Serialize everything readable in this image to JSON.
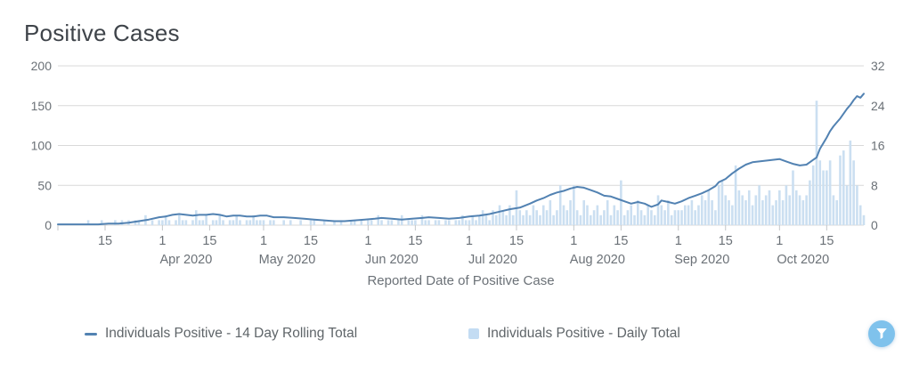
{
  "title": "Positive Cases",
  "colors": {
    "line": "#5282b2",
    "bar": "#cbdff1",
    "legend_square": "#c3dcf3",
    "grid": "#d9d9d9",
    "tick": "#c4c7ca",
    "axis_text": "#6b7177",
    "filter_button": "#7fc2ec"
  },
  "legend": {
    "items": [
      {
        "marker": "line",
        "label": "Individuals Positive - 14 Day Rolling Total"
      },
      {
        "marker": "square",
        "label": "Individuals Positive - Daily Total"
      }
    ]
  },
  "controls": {
    "filter_button_icon": "funnel-icon"
  },
  "chart_data": {
    "type": "line+bar",
    "title": "Positive Cases",
    "xlabel": "Reported Date of Positive Case",
    "x_start_date": "2020-03-01",
    "x_end_date": "2020-10-26",
    "grid": "horizontal-only",
    "legend_position": "bottom",
    "left_axis": {
      "range": [
        0,
        200
      ],
      "ticks": [
        0,
        50,
        100,
        150,
        200
      ]
    },
    "right_axis": {
      "range": [
        0,
        32
      ],
      "ticks": [
        0,
        8,
        16,
        24,
        32
      ]
    },
    "x_ticks": [
      {
        "date": "2020-03-01",
        "label": ""
      },
      {
        "date": "2020-03-15",
        "label": "15"
      },
      {
        "date": "2020-04-01",
        "label": "1"
      },
      {
        "date": "2020-04-15",
        "label": "15"
      },
      {
        "date": "2020-05-01",
        "label": "1"
      },
      {
        "date": "2020-05-15",
        "label": "15"
      },
      {
        "date": "2020-06-01",
        "label": "1"
      },
      {
        "date": "2020-06-15",
        "label": "15"
      },
      {
        "date": "2020-07-01",
        "label": "1"
      },
      {
        "date": "2020-07-15",
        "label": "15"
      },
      {
        "date": "2020-08-01",
        "label": "1"
      },
      {
        "date": "2020-08-15",
        "label": "15"
      },
      {
        "date": "2020-09-01",
        "label": "1"
      },
      {
        "date": "2020-09-15",
        "label": "15"
      },
      {
        "date": "2020-10-01",
        "label": "1"
      },
      {
        "date": "2020-10-15",
        "label": "15"
      }
    ],
    "month_labels": [
      {
        "date": "2020-04-08",
        "label": "Apr 2020"
      },
      {
        "date": "2020-05-08",
        "label": "May 2020"
      },
      {
        "date": "2020-06-08",
        "label": "Jun 2020"
      },
      {
        "date": "2020-07-08",
        "label": "Jul 2020"
      },
      {
        "date": "2020-08-08",
        "label": "Aug 2020"
      },
      {
        "date": "2020-09-08",
        "label": "Sep 2020"
      },
      {
        "date": "2020-10-08",
        "label": "Oct 2020"
      }
    ],
    "series": [
      {
        "name": "Individuals Positive - 14 Day Rolling Total",
        "type": "line",
        "axis": "left",
        "color": "#5282b2",
        "points": [
          [
            "2020-03-01",
            1
          ],
          [
            "2020-03-05",
            1
          ],
          [
            "2020-03-09",
            1
          ],
          [
            "2020-03-13",
            1
          ],
          [
            "2020-03-16",
            2
          ],
          [
            "2020-03-19",
            2
          ],
          [
            "2020-03-22",
            3
          ],
          [
            "2020-03-25",
            5
          ],
          [
            "2020-03-28",
            7
          ],
          [
            "2020-03-31",
            10
          ],
          [
            "2020-04-02",
            11
          ],
          [
            "2020-04-04",
            13
          ],
          [
            "2020-04-06",
            14
          ],
          [
            "2020-04-08",
            13
          ],
          [
            "2020-04-10",
            12
          ],
          [
            "2020-04-12",
            13
          ],
          [
            "2020-04-14",
            13
          ],
          [
            "2020-04-16",
            14
          ],
          [
            "2020-04-18",
            13
          ],
          [
            "2020-04-20",
            11
          ],
          [
            "2020-04-22",
            12
          ],
          [
            "2020-04-24",
            12
          ],
          [
            "2020-04-26",
            11
          ],
          [
            "2020-04-28",
            11
          ],
          [
            "2020-04-30",
            12
          ],
          [
            "2020-05-02",
            12
          ],
          [
            "2020-05-04",
            10
          ],
          [
            "2020-05-07",
            10
          ],
          [
            "2020-05-10",
            9
          ],
          [
            "2020-05-13",
            8
          ],
          [
            "2020-05-16",
            7
          ],
          [
            "2020-05-19",
            6
          ],
          [
            "2020-05-22",
            5
          ],
          [
            "2020-05-25",
            5
          ],
          [
            "2020-05-28",
            6
          ],
          [
            "2020-05-31",
            7
          ],
          [
            "2020-06-03",
            8
          ],
          [
            "2020-06-05",
            9
          ],
          [
            "2020-06-08",
            8
          ],
          [
            "2020-06-11",
            7
          ],
          [
            "2020-06-14",
            8
          ],
          [
            "2020-06-17",
            9
          ],
          [
            "2020-06-19",
            10
          ],
          [
            "2020-06-22",
            9
          ],
          [
            "2020-06-25",
            8
          ],
          [
            "2020-06-28",
            9
          ],
          [
            "2020-07-01",
            11
          ],
          [
            "2020-07-04",
            12
          ],
          [
            "2020-07-07",
            14
          ],
          [
            "2020-07-10",
            17
          ],
          [
            "2020-07-13",
            20
          ],
          [
            "2020-07-16",
            22
          ],
          [
            "2020-07-19",
            27
          ],
          [
            "2020-07-21",
            31
          ],
          [
            "2020-07-23",
            34
          ],
          [
            "2020-07-25",
            38
          ],
          [
            "2020-07-27",
            41
          ],
          [
            "2020-07-29",
            43
          ],
          [
            "2020-07-31",
            46
          ],
          [
            "2020-08-02",
            48
          ],
          [
            "2020-08-04",
            47
          ],
          [
            "2020-08-06",
            44
          ],
          [
            "2020-08-08",
            41
          ],
          [
            "2020-08-10",
            37
          ],
          [
            "2020-08-12",
            36
          ],
          [
            "2020-08-14",
            33
          ],
          [
            "2020-08-16",
            30
          ],
          [
            "2020-08-18",
            27
          ],
          [
            "2020-08-20",
            29
          ],
          [
            "2020-08-22",
            27
          ],
          [
            "2020-08-24",
            23
          ],
          [
            "2020-08-26",
            26
          ],
          [
            "2020-08-27",
            31
          ],
          [
            "2020-08-29",
            29
          ],
          [
            "2020-08-31",
            27
          ],
          [
            "2020-09-02",
            30
          ],
          [
            "2020-09-04",
            34
          ],
          [
            "2020-09-06",
            37
          ],
          [
            "2020-09-08",
            40
          ],
          [
            "2020-09-10",
            44
          ],
          [
            "2020-09-12",
            49
          ],
          [
            "2020-09-13",
            54
          ],
          [
            "2020-09-15",
            58
          ],
          [
            "2020-09-17",
            65
          ],
          [
            "2020-09-19",
            71
          ],
          [
            "2020-09-21",
            76
          ],
          [
            "2020-09-23",
            79
          ],
          [
            "2020-09-25",
            80
          ],
          [
            "2020-09-27",
            81
          ],
          [
            "2020-09-29",
            82
          ],
          [
            "2020-10-01",
            83
          ],
          [
            "2020-10-03",
            80
          ],
          [
            "2020-10-05",
            77
          ],
          [
            "2020-10-07",
            75
          ],
          [
            "2020-10-09",
            76
          ],
          [
            "2020-10-10",
            79
          ],
          [
            "2020-10-11",
            82
          ],
          [
            "2020-10-12",
            85
          ],
          [
            "2020-10-13",
            96
          ],
          [
            "2020-10-14",
            103
          ],
          [
            "2020-10-15",
            110
          ],
          [
            "2020-10-16",
            118
          ],
          [
            "2020-10-17",
            124
          ],
          [
            "2020-10-18",
            129
          ],
          [
            "2020-10-19",
            134
          ],
          [
            "2020-10-20",
            140
          ],
          [
            "2020-10-21",
            146
          ],
          [
            "2020-10-22",
            151
          ],
          [
            "2020-10-23",
            157
          ],
          [
            "2020-10-24",
            162
          ],
          [
            "2020-10-25",
            160
          ],
          [
            "2020-10-26",
            165
          ]
        ]
      },
      {
        "name": "Individuals Positive - Daily Total",
        "type": "bar",
        "axis": "right",
        "color": "#cbdff1",
        "start_date": "2020-03-01",
        "values": [
          0,
          0,
          0,
          0,
          0,
          0,
          0,
          0,
          0,
          1,
          0,
          0,
          0,
          1,
          0,
          0,
          0,
          1,
          0,
          1,
          0,
          1,
          0,
          1,
          1,
          0,
          2,
          0,
          1,
          0,
          1,
          1,
          2,
          1,
          0,
          1,
          2,
          1,
          1,
          0,
          1,
          3,
          1,
          1,
          2,
          0,
          1,
          1,
          2,
          1,
          0,
          1,
          1,
          2,
          1,
          0,
          1,
          1,
          2,
          1,
          1,
          1,
          0,
          1,
          1,
          0,
          0,
          1,
          0,
          1,
          0,
          0,
          1,
          0,
          0,
          1,
          1,
          0,
          0,
          1,
          0,
          0,
          1,
          0,
          1,
          0,
          0,
          1,
          1,
          0,
          1,
          0,
          1,
          1,
          0,
          2,
          1,
          0,
          1,
          1,
          0,
          1,
          2,
          0,
          1,
          1,
          1,
          0,
          2,
          1,
          1,
          0,
          1,
          1,
          0,
          1,
          1,
          0,
          1,
          1,
          2,
          1,
          1,
          2,
          1,
          2,
          3,
          2,
          1,
          3,
          2,
          4,
          3,
          2,
          4,
          2,
          7,
          3,
          2,
          3,
          2,
          4,
          3,
          2,
          4,
          3,
          5,
          2,
          3,
          8,
          4,
          3,
          5,
          8,
          3,
          2,
          5,
          4,
          2,
          3,
          4,
          2,
          3,
          5,
          2,
          4,
          3,
          9,
          2,
          3,
          4,
          2,
          5,
          3,
          2,
          4,
          3,
          2,
          6,
          4,
          3,
          5,
          2,
          3,
          3,
          3,
          4,
          4,
          5,
          3,
          4,
          6,
          5,
          7,
          5,
          3,
          8,
          9,
          6,
          5,
          4,
          12,
          7,
          6,
          5,
          7,
          4,
          6,
          8,
          5,
          6,
          7,
          4,
          5,
          7,
          5,
          8,
          6,
          11,
          7,
          6,
          5,
          6,
          9,
          12,
          25,
          13,
          11,
          11,
          13,
          6,
          5,
          14,
          15,
          8,
          17,
          13,
          8,
          4,
          2
        ]
      }
    ]
  }
}
